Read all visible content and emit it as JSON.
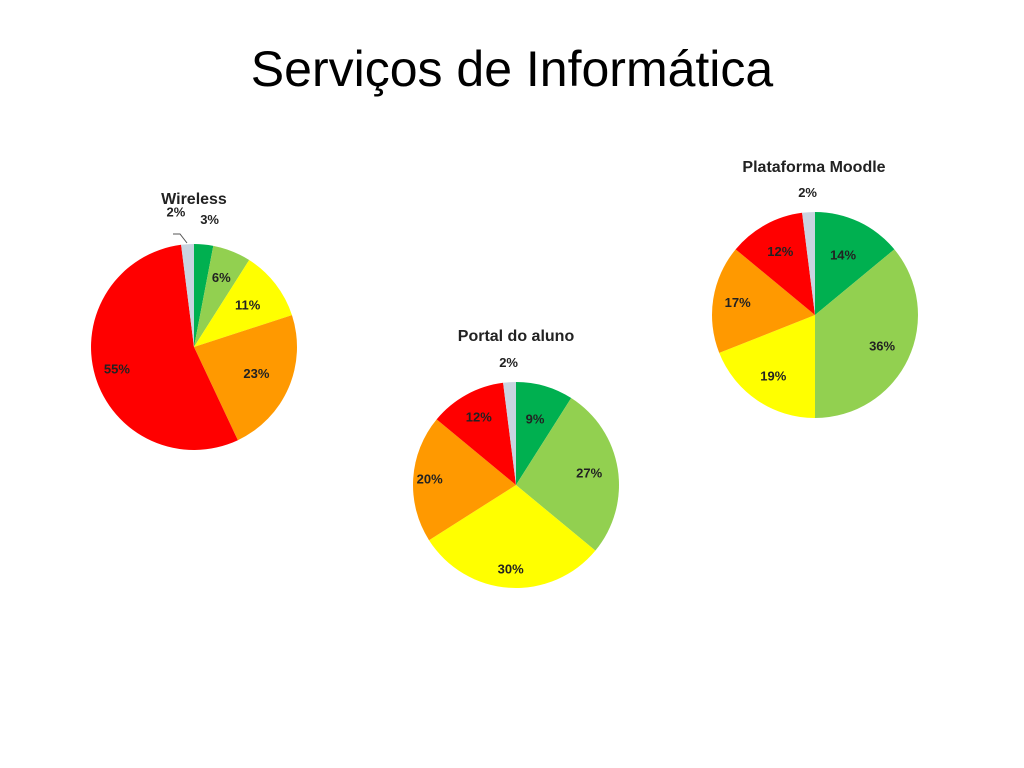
{
  "slide": {
    "title": "Serviços de Informática"
  },
  "colors": {
    "green": "#00B050",
    "light_green": "#92D050",
    "yellow": "#FFFF00",
    "orange": "#FF9900",
    "red": "#FF0000",
    "gray": "#C9D4E0"
  },
  "chart_data": [
    {
      "type": "pie",
      "title": "Wireless",
      "categories": [
        "",
        "",
        "",
        "",
        "",
        ""
      ],
      "values": [
        3,
        6,
        11,
        23,
        55,
        2
      ],
      "labels": [
        "3%",
        "6%",
        "11%",
        "23%",
        "55%",
        "2%"
      ],
      "series_colors": [
        "green",
        "light_green",
        "yellow",
        "orange",
        "red",
        "gray"
      ]
    },
    {
      "type": "pie",
      "title": "Portal do aluno",
      "categories": [
        "",
        "",
        "",
        "",
        "",
        ""
      ],
      "values": [
        9,
        27,
        30,
        20,
        12,
        2
      ],
      "labels": [
        "9%",
        "27%",
        "30%",
        "20%",
        "12%",
        "2%"
      ],
      "series_colors": [
        "green",
        "light_green",
        "yellow",
        "orange",
        "red",
        "gray"
      ]
    },
    {
      "type": "pie",
      "title": "Plataforma Moodle",
      "categories": [
        "",
        "",
        "",
        "",
        "",
        ""
      ],
      "values": [
        14,
        36,
        19,
        17,
        12,
        2
      ],
      "labels": [
        "14%",
        "36%",
        "19%",
        "17%",
        "12%",
        "2%"
      ],
      "series_colors": [
        "green",
        "light_green",
        "yellow",
        "orange",
        "red",
        "gray"
      ]
    }
  ]
}
